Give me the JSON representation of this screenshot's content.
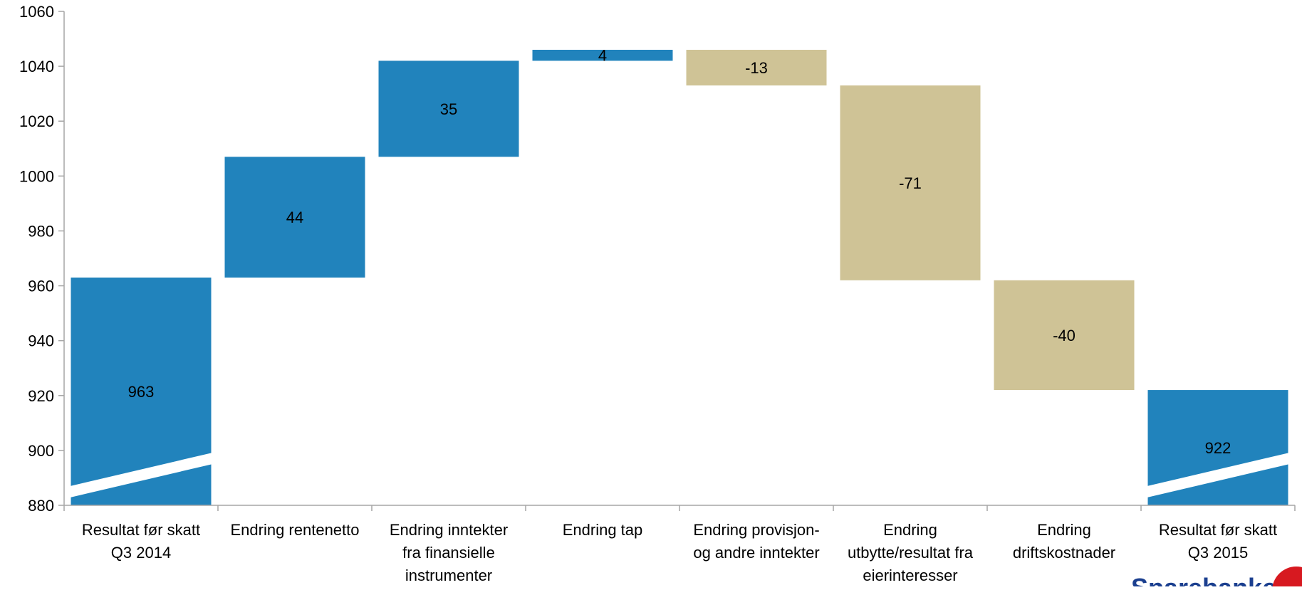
{
  "chart_data": {
    "type": "bar",
    "subtype": "waterfall",
    "categories": [
      [
        "Resultat før skatt",
        "Q3 2014"
      ],
      [
        "Endring rentenetto"
      ],
      [
        "Endring inntekter",
        "fra finansielle",
        "instrumenter"
      ],
      [
        "Endring tap"
      ],
      [
        "Endring provisjon-",
        "og andre inntekter"
      ],
      [
        "Endring",
        "utbytte/resultat fra",
        "eierinteresser"
      ],
      [
        "Endring",
        "driftskostnader"
      ],
      [
        "Resultat før skatt",
        "Q3 2015"
      ]
    ],
    "values": [
      963,
      44,
      35,
      4,
      -13,
      -71,
      -40,
      922
    ],
    "bar_kind": [
      "total",
      "change",
      "change",
      "change",
      "change",
      "change",
      "change",
      "total"
    ],
    "data_labels": [
      "963",
      "44",
      "35",
      "4",
      "-13",
      "-71",
      "-40",
      "922"
    ],
    "ylim": [
      880,
      1060
    ],
    "yticks": [
      880,
      900,
      920,
      940,
      960,
      980,
      1000,
      1020,
      1040,
      1060
    ],
    "axis_break_on_totals": true,
    "grid": false,
    "legend": "none",
    "colors": {
      "positive": "#2183BC",
      "negative": "#CFC396",
      "total": "#2183BC",
      "axis": "#A6A6A6",
      "text": "#000000"
    }
  },
  "logo": {
    "text": "Sparebanken",
    "color": "#1B3F8F",
    "mark_color": "#D71920"
  }
}
